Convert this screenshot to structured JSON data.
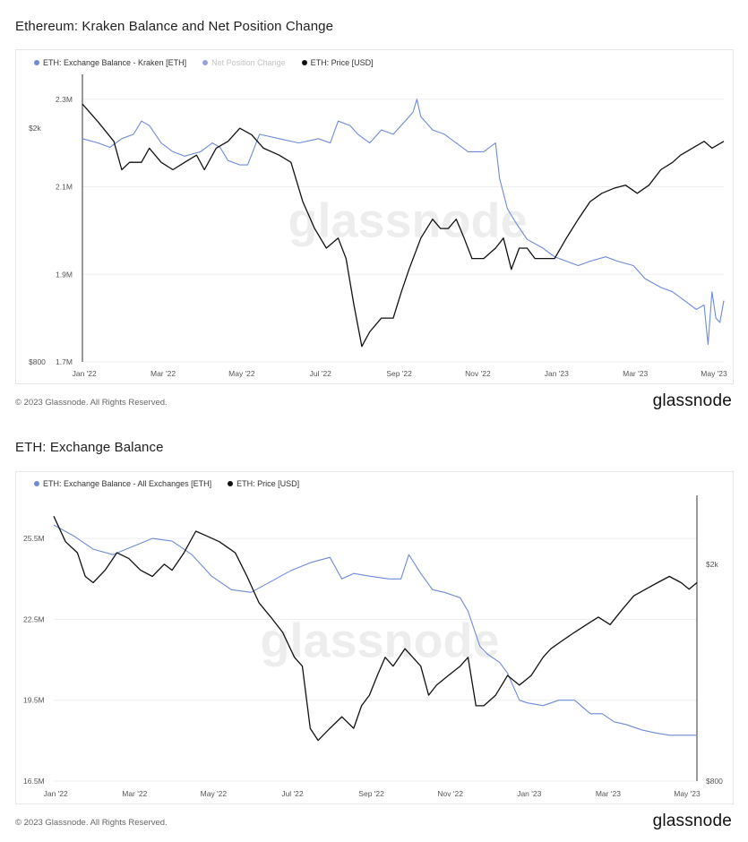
{
  "chart_data": [
    {
      "type": "line",
      "title": "Ethereum: Kraken Balance and Net Position Change",
      "legend_position": "top-left",
      "legend": [
        {
          "label": "ETH: Exchange Balance - Kraken [ETH]",
          "color": "#6f8ad9",
          "muted": false
        },
        {
          "label": "Net Position Change",
          "color": "#8a8fd0",
          "muted": true
        },
        {
          "label": "ETH: Price [USD]",
          "color": "#111111",
          "muted": false
        }
      ],
      "x_ticks": [
        "Jan '22",
        "Mar '22",
        "May '22",
        "Jul '22",
        "Sep '22",
        "Nov '22",
        "Jan '23",
        "Mar '23",
        "May '23"
      ],
      "x_range": [
        0,
        16.3
      ],
      "left_axis": {
        "ticks": [
          "2.3M",
          "2.1M",
          "1.9M",
          "1.7M"
        ],
        "values": [
          2.3,
          2.1,
          1.9,
          1.7
        ],
        "range": [
          1.7,
          2.32
        ]
      },
      "right_axis": {
        "ticks": [
          "$2k",
          "$800"
        ],
        "values": [
          2000,
          800
        ],
        "range": [
          800,
          2320
        ],
        "log": true,
        "side": "left-inner"
      },
      "series": [
        {
          "name": "ETH: Exchange Balance - Kraken [ETH]",
          "color": "#6f8ad9",
          "axis": "left",
          "points": [
            [
              0,
              2.21
            ],
            [
              0.4,
              2.2
            ],
            [
              0.7,
              2.19
            ],
            [
              1.0,
              2.21
            ],
            [
              1.3,
              2.22
            ],
            [
              1.5,
              2.25
            ],
            [
              1.7,
              2.24
            ],
            [
              2.0,
              2.2
            ],
            [
              2.3,
              2.18
            ],
            [
              2.6,
              2.17
            ],
            [
              3.0,
              2.18
            ],
            [
              3.3,
              2.2
            ],
            [
              3.5,
              2.19
            ],
            [
              3.7,
              2.16
            ],
            [
              4.0,
              2.15
            ],
            [
              4.2,
              2.15
            ],
            [
              4.5,
              2.22
            ],
            [
              5.0,
              2.21
            ],
            [
              5.5,
              2.2
            ],
            [
              6.0,
              2.21
            ],
            [
              6.3,
              2.2
            ],
            [
              6.5,
              2.25
            ],
            [
              6.8,
              2.24
            ],
            [
              7.0,
              2.22
            ],
            [
              7.3,
              2.2
            ],
            [
              7.6,
              2.23
            ],
            [
              7.9,
              2.22
            ],
            [
              8.2,
              2.25
            ],
            [
              8.4,
              2.27
            ],
            [
              8.5,
              2.3
            ],
            [
              8.6,
              2.26
            ],
            [
              8.9,
              2.23
            ],
            [
              9.2,
              2.22
            ],
            [
              9.5,
              2.2
            ],
            [
              9.8,
              2.18
            ],
            [
              10.2,
              2.18
            ],
            [
              10.5,
              2.2
            ],
            [
              10.6,
              2.12
            ],
            [
              10.8,
              2.05
            ],
            [
              11.0,
              2.02
            ],
            [
              11.3,
              1.98
            ],
            [
              11.7,
              1.96
            ],
            [
              12.0,
              1.94
            ],
            [
              12.3,
              1.93
            ],
            [
              12.6,
              1.92
            ],
            [
              12.9,
              1.93
            ],
            [
              13.3,
              1.94
            ],
            [
              13.6,
              1.93
            ],
            [
              14.0,
              1.92
            ],
            [
              14.3,
              1.89
            ],
            [
              14.7,
              1.87
            ],
            [
              15.0,
              1.86
            ],
            [
              15.3,
              1.84
            ],
            [
              15.6,
              1.82
            ],
            [
              15.8,
              1.83
            ],
            [
              15.9,
              1.74
            ],
            [
              16.0,
              1.86
            ],
            [
              16.1,
              1.8
            ],
            [
              16.2,
              1.79
            ],
            [
              16.3,
              1.84
            ]
          ]
        },
        {
          "name": "ETH: Price [USD]",
          "color": "#111111",
          "axis": "right",
          "points": [
            [
              0,
              2200
            ],
            [
              0.4,
              2050
            ],
            [
              0.8,
              1900
            ],
            [
              1.0,
              1700
            ],
            [
              1.2,
              1750
            ],
            [
              1.5,
              1750
            ],
            [
              1.7,
              1850
            ],
            [
              2.0,
              1750
            ],
            [
              2.3,
              1700
            ],
            [
              2.6,
              1750
            ],
            [
              2.9,
              1800
            ],
            [
              3.1,
              1700
            ],
            [
              3.4,
              1850
            ],
            [
              3.7,
              1900
            ],
            [
              4.0,
              2000
            ],
            [
              4.3,
              1950
            ],
            [
              4.6,
              1850
            ],
            [
              5.0,
              1800
            ],
            [
              5.3,
              1750
            ],
            [
              5.6,
              1500
            ],
            [
              5.9,
              1350
            ],
            [
              6.2,
              1250
            ],
            [
              6.5,
              1300
            ],
            [
              6.7,
              1200
            ],
            [
              6.9,
              1000
            ],
            [
              7.1,
              850
            ],
            [
              7.3,
              900
            ],
            [
              7.6,
              950
            ],
            [
              7.9,
              950
            ],
            [
              8.1,
              1050
            ],
            [
              8.3,
              1150
            ],
            [
              8.6,
              1300
            ],
            [
              8.9,
              1400
            ],
            [
              9.1,
              1350
            ],
            [
              9.3,
              1350
            ],
            [
              9.5,
              1400
            ],
            [
              9.7,
              1300
            ],
            [
              9.9,
              1200
            ],
            [
              10.2,
              1200
            ],
            [
              10.5,
              1250
            ],
            [
              10.7,
              1300
            ],
            [
              10.9,
              1150
            ],
            [
              11.1,
              1250
            ],
            [
              11.3,
              1250
            ],
            [
              11.5,
              1200
            ],
            [
              11.7,
              1200
            ],
            [
              12.0,
              1200
            ],
            [
              12.3,
              1300
            ],
            [
              12.6,
              1400
            ],
            [
              12.9,
              1500
            ],
            [
              13.2,
              1550
            ],
            [
              13.5,
              1580
            ],
            [
              13.8,
              1600
            ],
            [
              14.1,
              1550
            ],
            [
              14.4,
              1600
            ],
            [
              14.7,
              1700
            ],
            [
              15.0,
              1750
            ],
            [
              15.2,
              1800
            ],
            [
              15.5,
              1850
            ],
            [
              15.8,
              1900
            ],
            [
              16.0,
              1850
            ],
            [
              16.3,
              1900
            ]
          ]
        }
      ]
    },
    {
      "type": "line",
      "title": "ETH: Exchange Balance",
      "legend_position": "top-left",
      "legend": [
        {
          "label": "ETH: Exchange Balance - All Exchanges [ETH]",
          "color": "#6f8ad9",
          "muted": false
        },
        {
          "label": "ETH: Price [USD]",
          "color": "#111111",
          "muted": false
        }
      ],
      "x_ticks": [
        "Jan '22",
        "Mar '22",
        "May '22",
        "Jul '22",
        "Sep '22",
        "Nov '22",
        "Jan '23",
        "Mar '23",
        "May '23"
      ],
      "x_range": [
        0,
        16.3
      ],
      "left_axis": {
        "ticks": [
          "25.5M",
          "22.5M",
          "19.5M",
          "16.5M"
        ],
        "values": [
          25.5,
          22.5,
          19.5,
          16.5
        ],
        "range": [
          16.5,
          26.5
        ]
      },
      "right_axis": {
        "ticks": [
          "$2k",
          "$800"
        ],
        "values": [
          2000,
          800
        ],
        "range": [
          800,
          2500
        ],
        "log": true,
        "side": "right"
      },
      "series": [
        {
          "name": "ETH: Exchange Balance - All Exchanges [ETH]",
          "color": "#6f8ad9",
          "axis": "left",
          "points": [
            [
              0,
              26.0
            ],
            [
              0.5,
              25.6
            ],
            [
              1.0,
              25.1
            ],
            [
              1.5,
              24.9
            ],
            [
              2.0,
              25.2
            ],
            [
              2.5,
              25.5
            ],
            [
              3.0,
              25.4
            ],
            [
              3.5,
              24.9
            ],
            [
              4.0,
              24.1
            ],
            [
              4.5,
              23.6
            ],
            [
              5.0,
              23.5
            ],
            [
              5.5,
              23.9
            ],
            [
              6.0,
              24.3
            ],
            [
              6.5,
              24.6
            ],
            [
              7.0,
              24.8
            ],
            [
              7.3,
              24.0
            ],
            [
              7.6,
              24.2
            ],
            [
              8.0,
              24.1
            ],
            [
              8.5,
              24.0
            ],
            [
              8.8,
              24.0
            ],
            [
              9.0,
              24.9
            ],
            [
              9.3,
              24.2
            ],
            [
              9.6,
              23.6
            ],
            [
              9.9,
              23.5
            ],
            [
              10.3,
              23.3
            ],
            [
              10.5,
              22.8
            ],
            [
              10.8,
              21.5
            ],
            [
              11.0,
              21.2
            ],
            [
              11.3,
              20.9
            ],
            [
              11.5,
              20.5
            ],
            [
              11.8,
              19.5
            ],
            [
              12.0,
              19.4
            ],
            [
              12.4,
              19.3
            ],
            [
              12.8,
              19.5
            ],
            [
              13.2,
              19.5
            ],
            [
              13.6,
              19.0
            ],
            [
              13.9,
              19.0
            ],
            [
              14.2,
              18.7
            ],
            [
              14.5,
              18.6
            ],
            [
              14.9,
              18.4
            ],
            [
              15.2,
              18.3
            ],
            [
              15.6,
              18.2
            ],
            [
              16.0,
              18.2
            ],
            [
              16.3,
              18.2
            ]
          ]
        },
        {
          "name": "ETH: Price [USD]",
          "color": "#111111",
          "axis": "right",
          "points": [
            [
              0,
              2450
            ],
            [
              0.3,
              2200
            ],
            [
              0.6,
              2100
            ],
            [
              0.8,
              1900
            ],
            [
              1.0,
              1850
            ],
            [
              1.3,
              1950
            ],
            [
              1.6,
              2100
            ],
            [
              1.9,
              2050
            ],
            [
              2.2,
              1950
            ],
            [
              2.5,
              1900
            ],
            [
              2.8,
              2000
            ],
            [
              3.0,
              1950
            ],
            [
              3.3,
              2100
            ],
            [
              3.6,
              2300
            ],
            [
              3.9,
              2250
            ],
            [
              4.2,
              2200
            ],
            [
              4.6,
              2100
            ],
            [
              4.9,
              1900
            ],
            [
              5.2,
              1700
            ],
            [
              5.5,
              1600
            ],
            [
              5.8,
              1500
            ],
            [
              6.1,
              1350
            ],
            [
              6.3,
              1300
            ],
            [
              6.5,
              1000
            ],
            [
              6.7,
              950
            ],
            [
              7.0,
              1000
            ],
            [
              7.3,
              1050
            ],
            [
              7.6,
              1000
            ],
            [
              7.8,
              1100
            ],
            [
              8.0,
              1150
            ],
            [
              8.2,
              1250
            ],
            [
              8.4,
              1350
            ],
            [
              8.6,
              1300
            ],
            [
              8.9,
              1400
            ],
            [
              9.1,
              1350
            ],
            [
              9.3,
              1300
            ],
            [
              9.5,
              1150
            ],
            [
              9.7,
              1200
            ],
            [
              10.0,
              1250
            ],
            [
              10.3,
              1300
            ],
            [
              10.5,
              1350
            ],
            [
              10.7,
              1100
            ],
            [
              10.9,
              1100
            ],
            [
              11.2,
              1150
            ],
            [
              11.5,
              1250
            ],
            [
              11.8,
              1200
            ],
            [
              12.1,
              1250
            ],
            [
              12.4,
              1350
            ],
            [
              12.6,
              1400
            ],
            [
              12.9,
              1450
            ],
            [
              13.2,
              1500
            ],
            [
              13.5,
              1550
            ],
            [
              13.8,
              1600
            ],
            [
              14.1,
              1550
            ],
            [
              14.4,
              1650
            ],
            [
              14.7,
              1750
            ],
            [
              15.0,
              1800
            ],
            [
              15.3,
              1850
            ],
            [
              15.6,
              1900
            ],
            [
              15.9,
              1850
            ],
            [
              16.1,
              1800
            ],
            [
              16.3,
              1850
            ]
          ]
        }
      ]
    }
  ],
  "watermark": "glassnode",
  "footer": {
    "copyright_1": "© 2023 Glassnode. All Rights Reserved.",
    "brand_1": "glassnode",
    "copyright_2": "© 2023 Glassnode. All Rights Reserved.",
    "brand_2": "glassnode"
  }
}
